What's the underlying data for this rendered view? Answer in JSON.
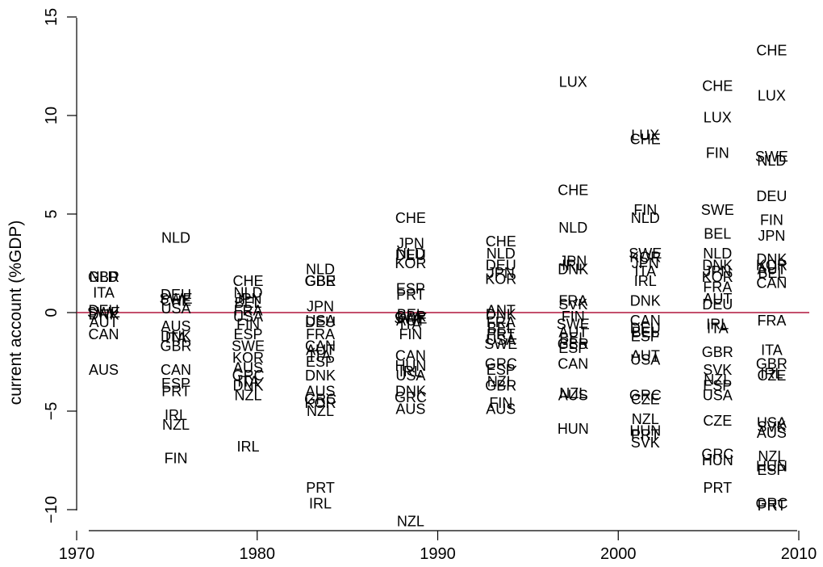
{
  "chart_data": {
    "type": "scatter",
    "title": "",
    "xlabel": "",
    "ylabel": "current account (%GDP)",
    "xlim": [
      1970,
      2010
    ],
    "ylim": [
      -11,
      15
    ],
    "x_ticks": [
      1970,
      1980,
      1990,
      2000,
      2010
    ],
    "y_ticks": [
      -10,
      -5,
      0,
      5,
      10,
      15
    ],
    "y_tick_labels": [
      "−10",
      "−5",
      "0",
      "5",
      "10",
      "15"
    ],
    "reference_line": {
      "y": 0,
      "color": "#b0173d"
    },
    "grid": false,
    "marker": "country-code text labels",
    "points": [
      {
        "x": 1971.5,
        "y": 1.8,
        "label": "GBR"
      },
      {
        "x": 1971.5,
        "y": 1.8,
        "label": "NLD"
      },
      {
        "x": 1971.5,
        "y": 1.0,
        "label": "ITA"
      },
      {
        "x": 1971.5,
        "y": 0.1,
        "label": "DEU"
      },
      {
        "x": 1971.5,
        "y": 0.0,
        "label": "SWE"
      },
      {
        "x": 1971.5,
        "y": -0.1,
        "label": "DNK"
      },
      {
        "x": 1971.5,
        "y": -0.5,
        "label": "AUT"
      },
      {
        "x": 1971.5,
        "y": -1.1,
        "label": "CAN"
      },
      {
        "x": 1971.5,
        "y": -2.9,
        "label": "AUS"
      },
      {
        "x": 1975.5,
        "y": 3.8,
        "label": "NLD"
      },
      {
        "x": 1975.5,
        "y": 0.9,
        "label": "DEU"
      },
      {
        "x": 1975.5,
        "y": 0.7,
        "label": "SWE"
      },
      {
        "x": 1975.5,
        "y": 0.6,
        "label": "CHE"
      },
      {
        "x": 1975.5,
        "y": 0.2,
        "label": "USA"
      },
      {
        "x": 1975.5,
        "y": -0.7,
        "label": "AUS"
      },
      {
        "x": 1975.5,
        "y": -1.2,
        "label": "DNK"
      },
      {
        "x": 1975.5,
        "y": -1.3,
        "label": "ITA"
      },
      {
        "x": 1975.5,
        "y": -1.7,
        "label": "GBR"
      },
      {
        "x": 1975.5,
        "y": -2.9,
        "label": "CAN"
      },
      {
        "x": 1975.5,
        "y": -3.6,
        "label": "ESP"
      },
      {
        "x": 1975.5,
        "y": -4.0,
        "label": "PRT"
      },
      {
        "x": 1975.5,
        "y": -5.2,
        "label": "IRL"
      },
      {
        "x": 1975.5,
        "y": -5.7,
        "label": "NZL"
      },
      {
        "x": 1975.5,
        "y": -7.4,
        "label": "FIN"
      },
      {
        "x": 1979.5,
        "y": 1.6,
        "label": "CHE"
      },
      {
        "x": 1979.5,
        "y": 1.0,
        "label": "NLD"
      },
      {
        "x": 1979.5,
        "y": 0.7,
        "label": "JPN"
      },
      {
        "x": 1979.5,
        "y": 0.5,
        "label": "BEL"
      },
      {
        "x": 1979.5,
        "y": 0.1,
        "label": "FRA"
      },
      {
        "x": 1979.5,
        "y": -0.2,
        "label": "USA"
      },
      {
        "x": 1979.5,
        "y": -0.6,
        "label": "FIN"
      },
      {
        "x": 1979.5,
        "y": -1.1,
        "label": "ESP"
      },
      {
        "x": 1979.5,
        "y": -1.7,
        "label": "SWE"
      },
      {
        "x": 1979.5,
        "y": -2.3,
        "label": "KOR"
      },
      {
        "x": 1979.5,
        "y": -2.8,
        "label": "AUS"
      },
      {
        "x": 1979.5,
        "y": -3.2,
        "label": "GRC"
      },
      {
        "x": 1979.5,
        "y": -3.5,
        "label": "ITA"
      },
      {
        "x": 1979.5,
        "y": -3.7,
        "label": "DNK"
      },
      {
        "x": 1979.5,
        "y": -4.2,
        "label": "NZL"
      },
      {
        "x": 1979.5,
        "y": -6.8,
        "label": "IRL"
      },
      {
        "x": 1983.5,
        "y": 2.2,
        "label": "NLD"
      },
      {
        "x": 1983.5,
        "y": 1.6,
        "label": "GBR"
      },
      {
        "x": 1983.5,
        "y": 1.6,
        "label": "GBE"
      },
      {
        "x": 1983.5,
        "y": 0.3,
        "label": "JPN"
      },
      {
        "x": 1983.5,
        "y": -0.4,
        "label": "USA"
      },
      {
        "x": 1983.5,
        "y": -0.5,
        "label": "DEU"
      },
      {
        "x": 1983.5,
        "y": -1.1,
        "label": "FRA"
      },
      {
        "x": 1983.5,
        "y": -1.7,
        "label": "CAN"
      },
      {
        "x": 1983.5,
        "y": -1.9,
        "label": "AUT"
      },
      {
        "x": 1983.5,
        "y": -2.2,
        "label": "ITA"
      },
      {
        "x": 1983.5,
        "y": -2.5,
        "label": "ESP"
      },
      {
        "x": 1983.5,
        "y": -3.2,
        "label": "DNK"
      },
      {
        "x": 1983.5,
        "y": -4.0,
        "label": "AUS"
      },
      {
        "x": 1983.5,
        "y": -4.4,
        "label": "GRC"
      },
      {
        "x": 1983.5,
        "y": -4.6,
        "label": "KOR"
      },
      {
        "x": 1983.5,
        "y": -5.0,
        "label": "NZL"
      },
      {
        "x": 1983.5,
        "y": -8.9,
        "label": "PRT"
      },
      {
        "x": 1983.5,
        "y": -9.7,
        "label": "IRL"
      },
      {
        "x": 1988.5,
        "y": 4.8,
        "label": "CHE"
      },
      {
        "x": 1988.5,
        "y": 3.5,
        "label": "JPN"
      },
      {
        "x": 1988.5,
        "y": 3.0,
        "label": "NLD"
      },
      {
        "x": 1988.5,
        "y": 2.9,
        "label": "DEU"
      },
      {
        "x": 1988.5,
        "y": 2.5,
        "label": "KOR"
      },
      {
        "x": 1988.5,
        "y": 1.2,
        "label": "ESP"
      },
      {
        "x": 1988.5,
        "y": 0.9,
        "label": "PRT"
      },
      {
        "x": 1988.5,
        "y": -0.1,
        "label": "BEL"
      },
      {
        "x": 1988.5,
        "y": -0.2,
        "label": "GBR"
      },
      {
        "x": 1988.5,
        "y": -0.3,
        "label": "SWE"
      },
      {
        "x": 1988.5,
        "y": -0.4,
        "label": "AUT"
      },
      {
        "x": 1988.5,
        "y": -0.6,
        "label": "ITA"
      },
      {
        "x": 1988.5,
        "y": -1.1,
        "label": "FIN"
      },
      {
        "x": 1988.5,
        "y": -2.2,
        "label": "CAN"
      },
      {
        "x": 1988.5,
        "y": -2.7,
        "label": "HUN"
      },
      {
        "x": 1988.5,
        "y": -3.0,
        "label": "IRL"
      },
      {
        "x": 1988.5,
        "y": -3.2,
        "label": "USA"
      },
      {
        "x": 1988.5,
        "y": -4.0,
        "label": "DNK"
      },
      {
        "x": 1988.5,
        "y": -4.3,
        "label": "GRC"
      },
      {
        "x": 1988.5,
        "y": -4.9,
        "label": "AUS"
      },
      {
        "x": 1988.5,
        "y": -10.6,
        "label": "NZL"
      },
      {
        "x": 1993.5,
        "y": 3.6,
        "label": "CHE"
      },
      {
        "x": 1993.5,
        "y": 3.0,
        "label": "NLD"
      },
      {
        "x": 1993.5,
        "y": 2.4,
        "label": "DEU"
      },
      {
        "x": 1993.5,
        "y": 2.0,
        "label": "JPN"
      },
      {
        "x": 1993.5,
        "y": 1.7,
        "label": "KOR"
      },
      {
        "x": 1993.5,
        "y": 0.1,
        "label": "ANT"
      },
      {
        "x": 1993.5,
        "y": -0.1,
        "label": "DNK"
      },
      {
        "x": 1993.5,
        "y": -0.5,
        "label": "FRA"
      },
      {
        "x": 1993.5,
        "y": -0.8,
        "label": "BEL"
      },
      {
        "x": 1993.5,
        "y": -1.1,
        "label": "PRT"
      },
      {
        "x": 1993.5,
        "y": -1.4,
        "label": "USA"
      },
      {
        "x": 1993.5,
        "y": -1.6,
        "label": "SWE"
      },
      {
        "x": 1993.5,
        "y": -2.6,
        "label": "GRC"
      },
      {
        "x": 1993.5,
        "y": -2.9,
        "label": "ESP"
      },
      {
        "x": 1993.5,
        "y": -3.5,
        "label": "NZL"
      },
      {
        "x": 1993.5,
        "y": -3.7,
        "label": "GBR"
      },
      {
        "x": 1993.5,
        "y": -4.6,
        "label": "FIN"
      },
      {
        "x": 1993.5,
        "y": -4.9,
        "label": "AUS"
      },
      {
        "x": 1997.5,
        "y": 11.7,
        "label": "LUX"
      },
      {
        "x": 1997.5,
        "y": 6.2,
        "label": "CHE"
      },
      {
        "x": 1997.5,
        "y": 4.3,
        "label": "NLD"
      },
      {
        "x": 1997.5,
        "y": 2.6,
        "label": "JPN"
      },
      {
        "x": 1997.5,
        "y": 2.4,
        "label": "IRL"
      },
      {
        "x": 1997.5,
        "y": 2.2,
        "label": "DNK"
      },
      {
        "x": 1997.5,
        "y": 0.6,
        "label": "FRA"
      },
      {
        "x": 1997.5,
        "y": 0.4,
        "label": "SVK"
      },
      {
        "x": 1997.5,
        "y": -0.2,
        "label": "FIN"
      },
      {
        "x": 1997.5,
        "y": -0.6,
        "label": "SWE"
      },
      {
        "x": 1997.5,
        "y": -1.0,
        "label": "AUT"
      },
      {
        "x": 1997.5,
        "y": -1.3,
        "label": "BEL"
      },
      {
        "x": 1997.5,
        "y": -1.6,
        "label": "GBR"
      },
      {
        "x": 1997.5,
        "y": -1.8,
        "label": "ESP"
      },
      {
        "x": 1997.5,
        "y": -2.6,
        "label": "CAN"
      },
      {
        "x": 1997.5,
        "y": -4.1,
        "label": "NZL"
      },
      {
        "x": 1997.5,
        "y": -4.2,
        "label": "AUS"
      },
      {
        "x": 1997.5,
        "y": -5.9,
        "label": "HUN"
      },
      {
        "x": 2001.5,
        "y": 9.0,
        "label": "LUX"
      },
      {
        "x": 2001.5,
        "y": 8.8,
        "label": "CHE"
      },
      {
        "x": 2001.5,
        "y": 5.2,
        "label": "FIN"
      },
      {
        "x": 2001.5,
        "y": 4.8,
        "label": "NLD"
      },
      {
        "x": 2001.5,
        "y": 3.0,
        "label": "SWE"
      },
      {
        "x": 2001.5,
        "y": 2.8,
        "label": "KOR"
      },
      {
        "x": 2001.5,
        "y": 2.5,
        "label": "JPN"
      },
      {
        "x": 2001.5,
        "y": 2.1,
        "label": "ITA"
      },
      {
        "x": 2001.5,
        "y": 1.6,
        "label": "IRL"
      },
      {
        "x": 2001.5,
        "y": 0.6,
        "label": "DNK"
      },
      {
        "x": 2001.5,
        "y": -0.4,
        "label": "CAN"
      },
      {
        "x": 2001.5,
        "y": -0.8,
        "label": "DEU"
      },
      {
        "x": 2001.5,
        "y": -1.0,
        "label": "BEL"
      },
      {
        "x": 2001.5,
        "y": -1.2,
        "label": "ESP"
      },
      {
        "x": 2001.5,
        "y": -2.2,
        "label": "AUT"
      },
      {
        "x": 2001.5,
        "y": -2.4,
        "label": "USA"
      },
      {
        "x": 2001.5,
        "y": -4.2,
        "label": "GRC"
      },
      {
        "x": 2001.5,
        "y": -4.4,
        "label": "CZE"
      },
      {
        "x": 2001.5,
        "y": -5.4,
        "label": "NZL"
      },
      {
        "x": 2001.5,
        "y": -6.0,
        "label": "HUN"
      },
      {
        "x": 2001.5,
        "y": -6.2,
        "label": "PRT"
      },
      {
        "x": 2001.5,
        "y": -6.6,
        "label": "SVK"
      },
      {
        "x": 2005.5,
        "y": 11.5,
        "label": "CHE"
      },
      {
        "x": 2005.5,
        "y": 9.9,
        "label": "LUX"
      },
      {
        "x": 2005.5,
        "y": 8.1,
        "label": "FIN"
      },
      {
        "x": 2005.5,
        "y": 5.2,
        "label": "SWE"
      },
      {
        "x": 2005.5,
        "y": 4.0,
        "label": "BEL"
      },
      {
        "x": 2005.5,
        "y": 3.0,
        "label": "NLD"
      },
      {
        "x": 2005.5,
        "y": 2.4,
        "label": "DNK"
      },
      {
        "x": 2005.5,
        "y": 2.1,
        "label": "JPN"
      },
      {
        "x": 2005.5,
        "y": 1.8,
        "label": "KOR"
      },
      {
        "x": 2005.5,
        "y": 1.3,
        "label": "FRA"
      },
      {
        "x": 2005.5,
        "y": 0.7,
        "label": "AUT"
      },
      {
        "x": 2005.5,
        "y": 0.4,
        "label": "DEU"
      },
      {
        "x": 2005.5,
        "y": -0.6,
        "label": "IRL"
      },
      {
        "x": 2005.5,
        "y": -0.8,
        "label": "ITA"
      },
      {
        "x": 2005.5,
        "y": -2.0,
        "label": "GBR"
      },
      {
        "x": 2005.5,
        "y": -2.9,
        "label": "SVK"
      },
      {
        "x": 2005.5,
        "y": -3.4,
        "label": "NZL"
      },
      {
        "x": 2005.5,
        "y": -3.7,
        "label": "ESP"
      },
      {
        "x": 2005.5,
        "y": -4.2,
        "label": "USA"
      },
      {
        "x": 2005.5,
        "y": -5.5,
        "label": "CZE"
      },
      {
        "x": 2005.5,
        "y": -7.2,
        "label": "GRC"
      },
      {
        "x": 2005.5,
        "y": -7.5,
        "label": "HUN"
      },
      {
        "x": 2005.5,
        "y": -8.9,
        "label": "PRT"
      },
      {
        "x": 2008.5,
        "y": 13.3,
        "label": "CHE"
      },
      {
        "x": 2008.5,
        "y": 11.0,
        "label": "LUX"
      },
      {
        "x": 2008.5,
        "y": 7.9,
        "label": "SWE"
      },
      {
        "x": 2008.5,
        "y": 7.7,
        "label": "NLD"
      },
      {
        "x": 2008.5,
        "y": 5.9,
        "label": "DEU"
      },
      {
        "x": 2008.5,
        "y": 4.7,
        "label": "FIN"
      },
      {
        "x": 2008.5,
        "y": 3.9,
        "label": "JPN"
      },
      {
        "x": 2008.5,
        "y": 2.7,
        "label": "DNK"
      },
      {
        "x": 2008.5,
        "y": 2.4,
        "label": "KOR"
      },
      {
        "x": 2008.5,
        "y": 2.2,
        "label": "AUT"
      },
      {
        "x": 2008.5,
        "y": 2.0,
        "label": "BEL"
      },
      {
        "x": 2008.5,
        "y": 1.5,
        "label": "CAN"
      },
      {
        "x": 2008.5,
        "y": -0.4,
        "label": "FRA"
      },
      {
        "x": 2008.5,
        "y": -1.9,
        "label": "ITA"
      },
      {
        "x": 2008.5,
        "y": -2.6,
        "label": "GBR"
      },
      {
        "x": 2008.5,
        "y": -3.1,
        "label": "IRL"
      },
      {
        "x": 2008.5,
        "y": -3.2,
        "label": "CZE"
      },
      {
        "x": 2008.5,
        "y": -5.6,
        "label": "USA"
      },
      {
        "x": 2008.5,
        "y": -5.8,
        "label": "SVK"
      },
      {
        "x": 2008.5,
        "y": -6.1,
        "label": "AUS"
      },
      {
        "x": 2008.5,
        "y": -7.3,
        "label": "NZL"
      },
      {
        "x": 2008.5,
        "y": -7.8,
        "label": "HUN"
      },
      {
        "x": 2008.5,
        "y": -8.0,
        "label": "ESP"
      },
      {
        "x": 2008.5,
        "y": -9.7,
        "label": "GRC"
      },
      {
        "x": 2008.5,
        "y": -9.8,
        "label": "PRT"
      }
    ]
  }
}
